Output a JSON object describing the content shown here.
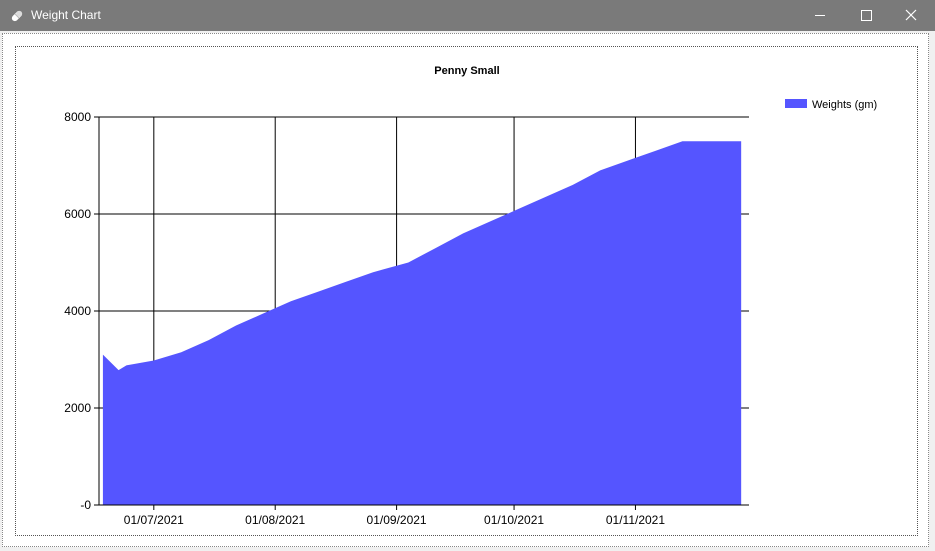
{
  "window": {
    "title": "Weight Chart",
    "icon": "pill-icon",
    "controls": [
      "minimize-icon",
      "maximize-icon",
      "close-icon"
    ]
  },
  "chart_data": {
    "type": "area",
    "title": "Penny Small",
    "xlabel": "",
    "ylabel": "",
    "x_type": "date",
    "x_ticks": [
      "01/07/2021",
      "01/08/2021",
      "01/09/2021",
      "01/10/2021",
      "01/11/2021"
    ],
    "y_ticks": [
      "-0",
      "2000",
      "4000",
      "6000",
      "8000"
    ],
    "ylim": [
      0,
      8000
    ],
    "xlim": [
      "2021-06-17",
      "2021-11-30"
    ],
    "grid": true,
    "legend_position": "top-right",
    "color": "#5555ff",
    "series": [
      {
        "name": "Weights (gm)",
        "points": [
          {
            "x": "2021-06-18",
            "y": 3100
          },
          {
            "x": "2021-06-22",
            "y": 2780
          },
          {
            "x": "2021-06-24",
            "y": 2880
          },
          {
            "x": "2021-07-01",
            "y": 2980
          },
          {
            "x": "2021-07-08",
            "y": 3150
          },
          {
            "x": "2021-07-15",
            "y": 3400
          },
          {
            "x": "2021-07-22",
            "y": 3700
          },
          {
            "x": "2021-07-29",
            "y": 3950
          },
          {
            "x": "2021-08-05",
            "y": 4200
          },
          {
            "x": "2021-08-12",
            "y": 4400
          },
          {
            "x": "2021-08-19",
            "y": 4600
          },
          {
            "x": "2021-08-26",
            "y": 4800
          },
          {
            "x": "2021-09-04",
            "y": 5000
          },
          {
            "x": "2021-09-11",
            "y": 5300
          },
          {
            "x": "2021-09-18",
            "y": 5600
          },
          {
            "x": "2021-09-25",
            "y": 5850
          },
          {
            "x": "2021-10-02",
            "y": 6100
          },
          {
            "x": "2021-10-09",
            "y": 6350
          },
          {
            "x": "2021-10-16",
            "y": 6600
          },
          {
            "x": "2021-10-23",
            "y": 6900
          },
          {
            "x": "2021-10-30",
            "y": 7100
          },
          {
            "x": "2021-11-06",
            "y": 7300
          },
          {
            "x": "2021-11-13",
            "y": 7500
          },
          {
            "x": "2021-11-28",
            "y": 7500
          }
        ]
      }
    ]
  }
}
